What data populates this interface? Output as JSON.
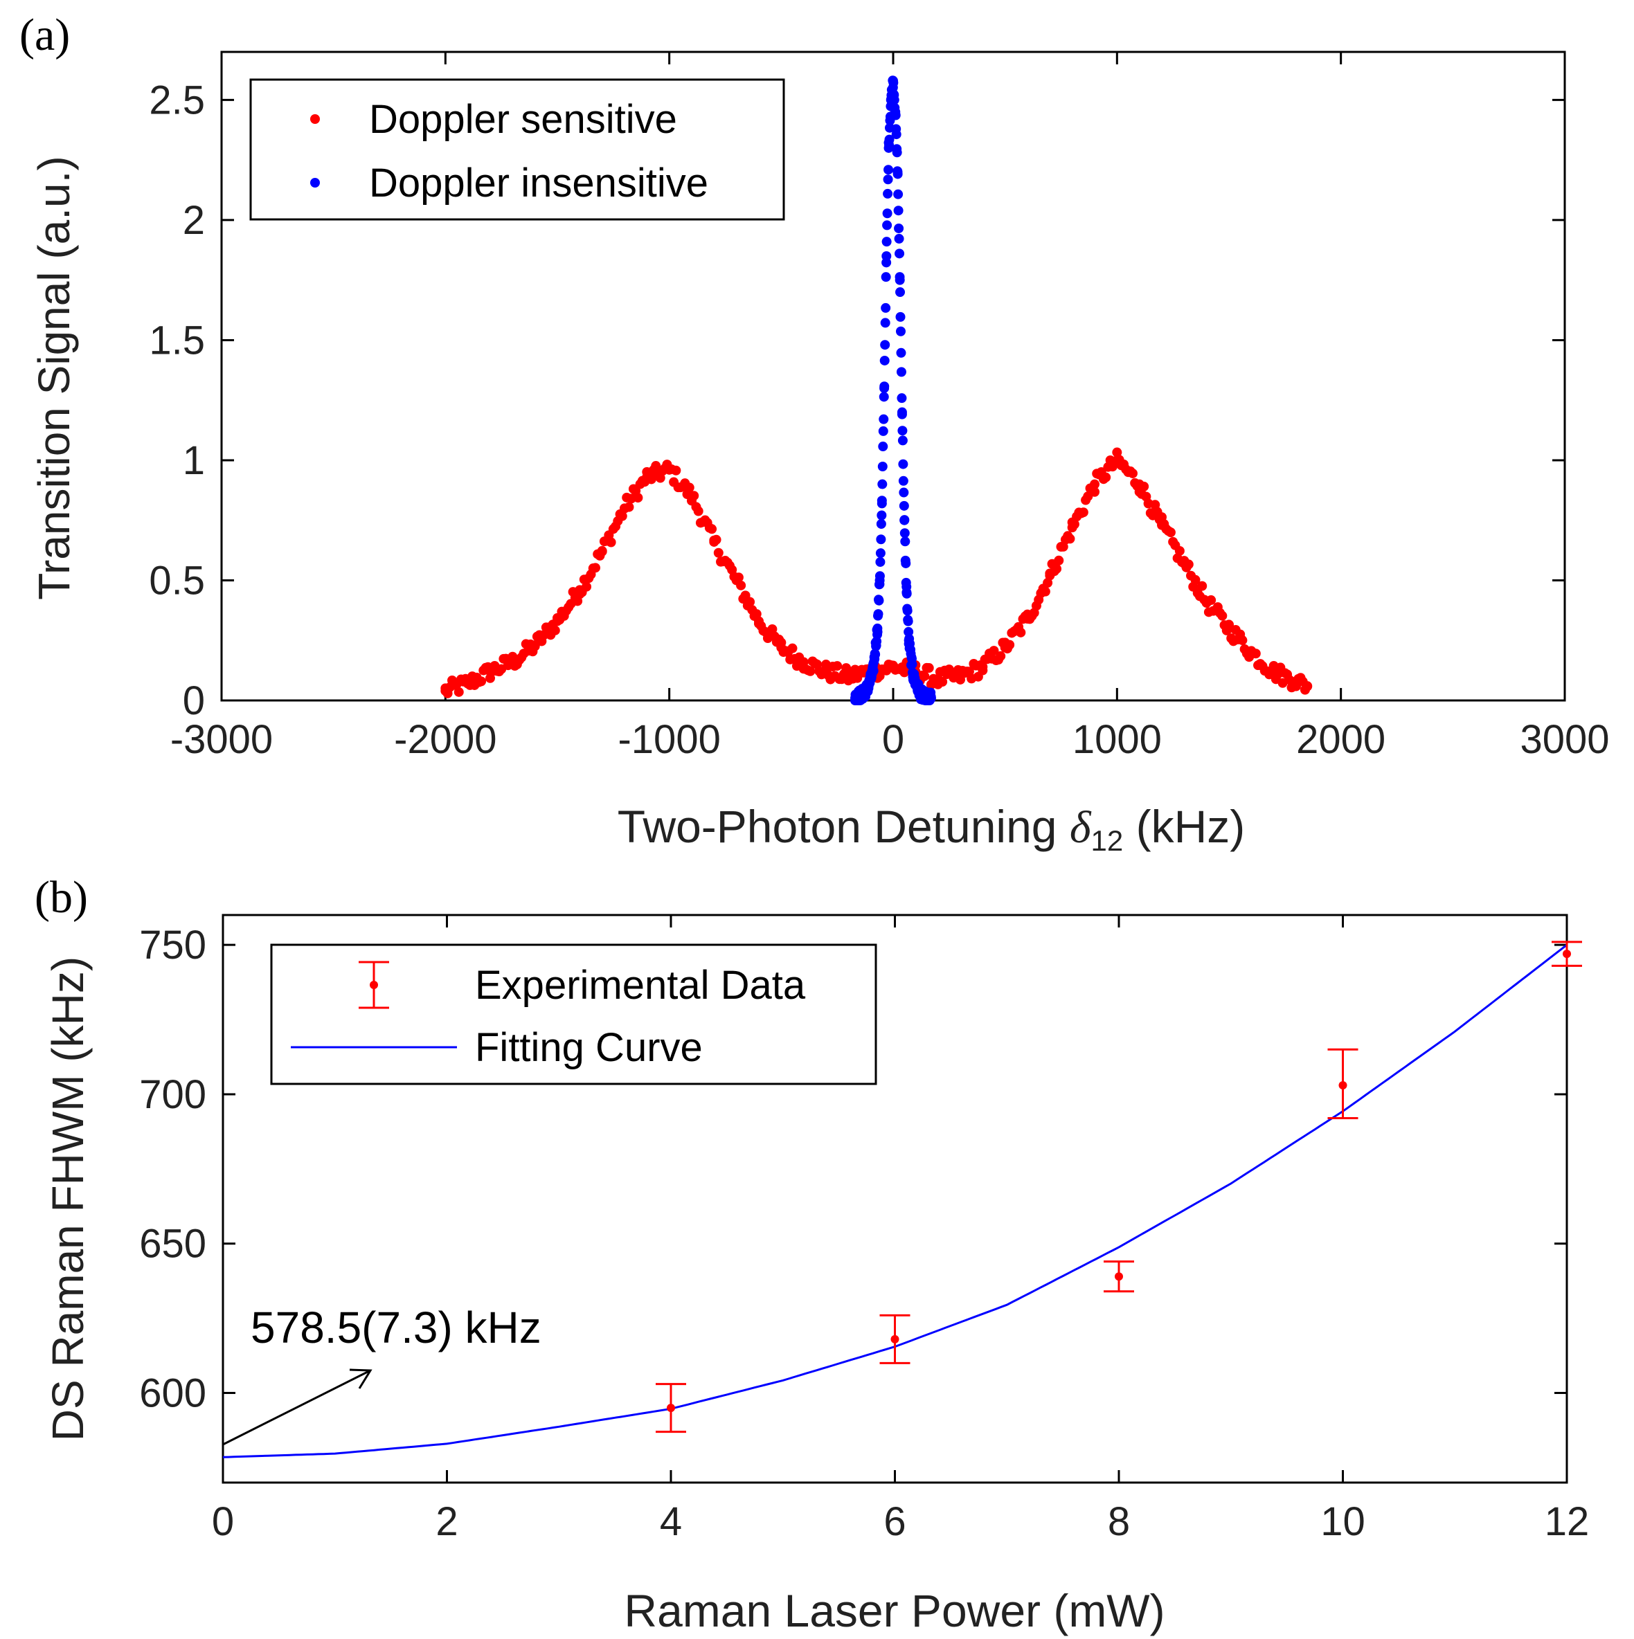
{
  "chart_data": [
    {
      "type": "scatter",
      "panel_label": "(a)",
      "xlabel_main": "Two-Photon Detuning ",
      "xlabel_symbol": "δ",
      "xlabel_subscript": "12",
      "xlabel_unit": " (kHz)",
      "ylabel": "Transition Signal (a.u.)",
      "xlim": [
        -3000,
        3000
      ],
      "ylim": [
        0,
        2.7
      ],
      "xticks": [
        -3000,
        -2000,
        -1000,
        0,
        1000,
        2000,
        3000
      ],
      "xtick_labels": [
        "-3000",
        "-2000",
        "-1000",
        "0",
        "1000",
        "2000",
        "3000"
      ],
      "yticks": [
        0,
        0.5,
        1,
        1.5,
        2,
        2.5
      ],
      "ytick_labels": [
        "0",
        "0.5",
        "1",
        "1.5",
        "2",
        "2.5"
      ],
      "legend_position": "top-left",
      "series": [
        {
          "name": "Doppler sensitive",
          "color": "#ff0000",
          "x": [
            -2000,
            -1900,
            -1800,
            -1700,
            -1600,
            -1500,
            -1400,
            -1300,
            -1200,
            -1100,
            -1000,
            -900,
            -800,
            -700,
            -600,
            -500,
            -400,
            -300,
            -200,
            -100,
            0,
            100,
            200,
            300,
            400,
            500,
            600,
            700,
            800,
            900,
            1000,
            1100,
            1200,
            1300,
            1400,
            1500,
            1600,
            1700,
            1800,
            1850
          ],
          "values": [
            0.04,
            0.07,
            0.12,
            0.16,
            0.23,
            0.33,
            0.46,
            0.62,
            0.8,
            0.93,
            0.96,
            0.85,
            0.66,
            0.5,
            0.33,
            0.22,
            0.16,
            0.12,
            0.1,
            0.12,
            0.14,
            0.12,
            0.09,
            0.1,
            0.14,
            0.22,
            0.34,
            0.52,
            0.72,
            0.9,
            1.0,
            0.9,
            0.73,
            0.57,
            0.41,
            0.3,
            0.2,
            0.12,
            0.08,
            0.06
          ]
        },
        {
          "name": "Doppler insensitive",
          "color": "#0000ff",
          "x": [
            -170,
            -150,
            -130,
            -110,
            -90,
            -70,
            -60,
            -50,
            -40,
            -30,
            -20,
            -10,
            0,
            10,
            20,
            30,
            40,
            50,
            60,
            70,
            90,
            110,
            130,
            150,
            170
          ],
          "values": [
            0.01,
            0.02,
            0.03,
            0.06,
            0.12,
            0.3,
            0.5,
            0.82,
            1.3,
            1.85,
            2.3,
            2.5,
            2.58,
            2.45,
            2.2,
            1.75,
            1.2,
            0.75,
            0.45,
            0.25,
            0.1,
            0.05,
            0.02,
            0.01,
            0.01
          ]
        }
      ]
    },
    {
      "type": "scatter",
      "panel_label": "(b)",
      "xlabel": "Raman Laser Power (mW)",
      "ylabel": "DS Raman FHWM (kHz)",
      "xlim": [
        0,
        12
      ],
      "ylim": [
        570,
        760
      ],
      "xticks": [
        0,
        2,
        4,
        6,
        8,
        10,
        12
      ],
      "xtick_labels": [
        "0",
        "2",
        "4",
        "6",
        "8",
        "10",
        "12"
      ],
      "yticks": [
        600,
        650,
        700,
        750
      ],
      "ytick_labels": [
        "600",
        "650",
        "700",
        "750"
      ],
      "legend_position": "top-left",
      "annotation": "578.5(7.3) kHz",
      "series": [
        {
          "name": "Experimental Data",
          "color": "#ff0000",
          "x": [
            4,
            6,
            8,
            10,
            12
          ],
          "values": [
            595,
            618,
            639,
            703,
            747
          ],
          "error_low": [
            587,
            610,
            634,
            692,
            743
          ],
          "error_high": [
            603,
            626,
            644,
            715,
            751
          ]
        },
        {
          "name": "Fitting Curve",
          "color": "#0000ff",
          "type": "line",
          "model": "quadratic",
          "x": [
            0,
            1,
            2,
            3,
            4,
            5,
            6,
            7,
            8,
            9,
            10,
            11,
            12
          ],
          "values": [
            578.5,
            579.7,
            583.0,
            588.7,
            594.7,
            604.2,
            615.5,
            629.5,
            648.8,
            670.1,
            694.3,
            721.0,
            750.0
          ]
        }
      ]
    }
  ]
}
